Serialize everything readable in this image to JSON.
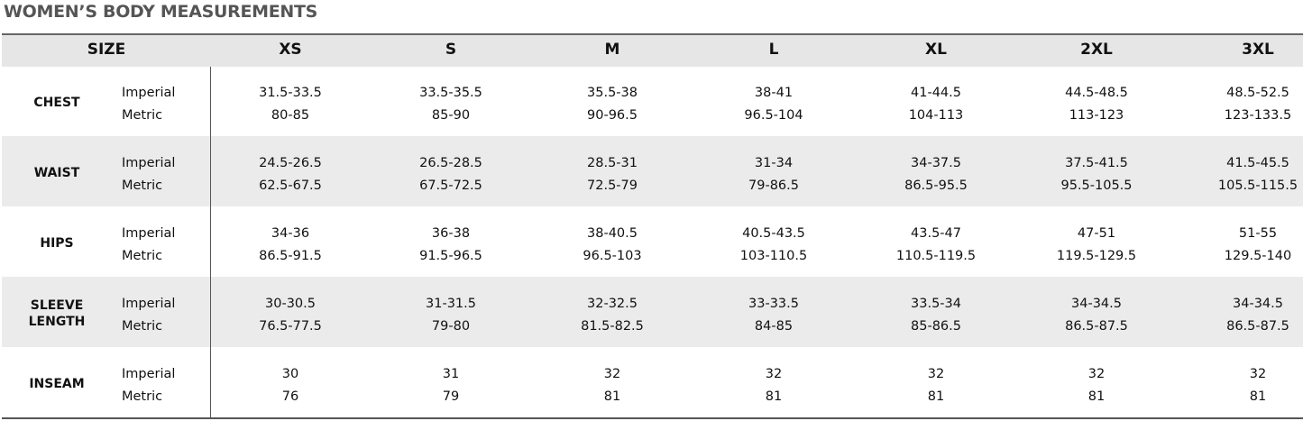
{
  "title": "WOMEN’S BODY MEASUREMENTS",
  "table": {
    "header": [
      "SIZE",
      "XS",
      "S",
      "M",
      "L",
      "XL",
      "2XL",
      "3XL"
    ],
    "rows": [
      {
        "label": "CHEST",
        "units": [
          "Imperial",
          "Metric"
        ],
        "values": [
          [
            "31.5-33.5",
            "80-85"
          ],
          [
            "33.5-35.5",
            "85-90"
          ],
          [
            "35.5-38",
            "90-96.5"
          ],
          [
            "38-41",
            "96.5-104"
          ],
          [
            "41-44.5",
            "104-113"
          ],
          [
            "44.5-48.5",
            "113-123"
          ],
          [
            "48.5-52.5",
            "123-133.5"
          ]
        ]
      },
      {
        "label": "WAIST",
        "units": [
          "Imperial",
          "Metric"
        ],
        "values": [
          [
            "24.5-26.5",
            "62.5-67.5"
          ],
          [
            "26.5-28.5",
            "67.5-72.5"
          ],
          [
            "28.5-31",
            "72.5-79"
          ],
          [
            "31-34",
            "79-86.5"
          ],
          [
            "34-37.5",
            "86.5-95.5"
          ],
          [
            "37.5-41.5",
            "95.5-105.5"
          ],
          [
            "41.5-45.5",
            "105.5-115.5"
          ]
        ]
      },
      {
        "label": "HIPS",
        "units": [
          "Imperial",
          "Metric"
        ],
        "values": [
          [
            "34-36",
            "86.5-91.5"
          ],
          [
            "36-38",
            "91.5-96.5"
          ],
          [
            "38-40.5",
            "96.5-103"
          ],
          [
            "40.5-43.5",
            "103-110.5"
          ],
          [
            "43.5-47",
            "110.5-119.5"
          ],
          [
            "47-51",
            "119.5-129.5"
          ],
          [
            "51-55",
            "129.5-140"
          ]
        ]
      },
      {
        "label": "SLEEVE LENGTH",
        "units": [
          "Imperial",
          "Metric"
        ],
        "values": [
          [
            "30-30.5",
            "76.5-77.5"
          ],
          [
            "31-31.5",
            "79-80"
          ],
          [
            "32-32.5",
            "81.5-82.5"
          ],
          [
            "33-33.5",
            "84-85"
          ],
          [
            "33.5-34",
            "85-86.5"
          ],
          [
            "34-34.5",
            "86.5-87.5"
          ],
          [
            "34-34.5",
            "86.5-87.5"
          ]
        ]
      },
      {
        "label": "INSEAM",
        "units": [
          "Imperial",
          "Metric"
        ],
        "values": [
          [
            30,
            76
          ],
          [
            31,
            79
          ],
          [
            32,
            81
          ],
          [
            32,
            81
          ],
          [
            32,
            81
          ],
          [
            32,
            81
          ],
          [
            32,
            81
          ]
        ]
      }
    ]
  }
}
